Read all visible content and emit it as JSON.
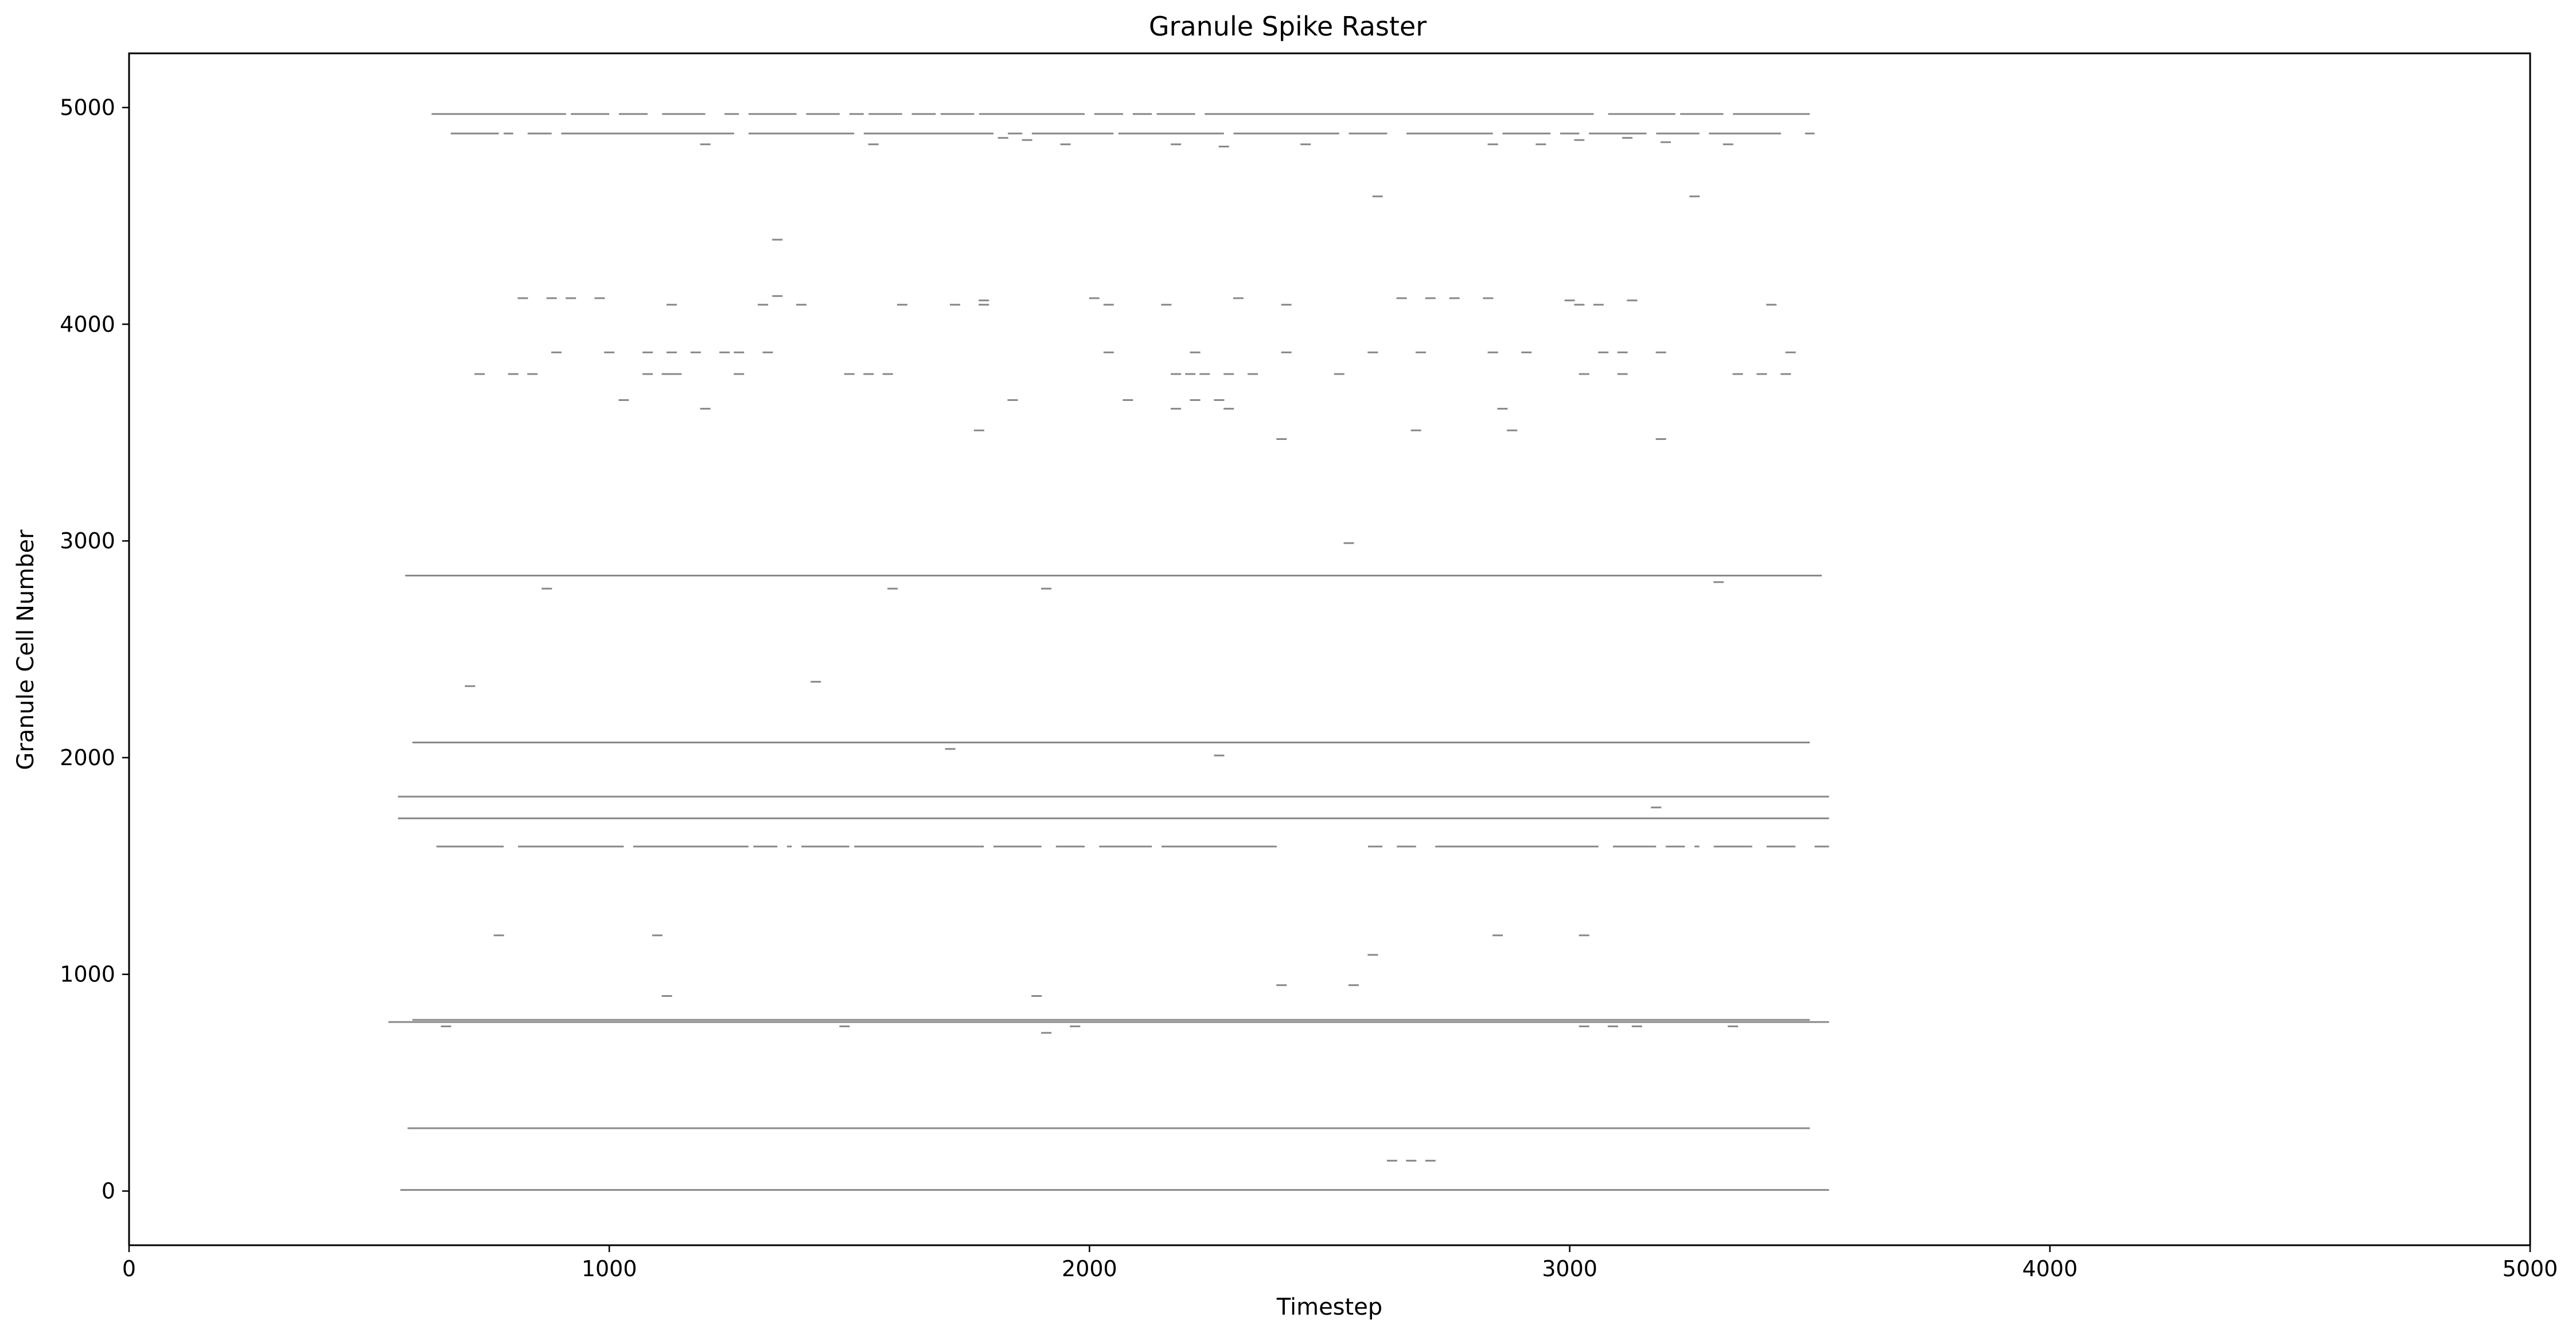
{
  "chart_data": {
    "type": "scatter",
    "title": "Granule Spike Raster",
    "xlabel": "Timestep",
    "ylabel": "Granule Cell Number",
    "xlim": [
      0,
      5000
    ],
    "ylim": [
      -250,
      5250
    ],
    "xticks": [
      0,
      1000,
      2000,
      3000,
      4000,
      5000
    ],
    "yticks": [
      0,
      1000,
      2000,
      3000,
      4000,
      5000
    ],
    "grid": false,
    "marker_color": "#888888",
    "dense_rows": [
      {
        "y": 4970,
        "segments": [
          [
            630,
            910
          ],
          [
            920,
            1000
          ],
          [
            1020,
            1080
          ],
          [
            1110,
            1200
          ],
          [
            1240,
            1270
          ],
          [
            1290,
            1390
          ],
          [
            1410,
            1480
          ],
          [
            1500,
            1530
          ],
          [
            1540,
            1610
          ],
          [
            1630,
            1680
          ],
          [
            1690,
            1760
          ],
          [
            1770,
            1990
          ],
          [
            2010,
            2070
          ],
          [
            2090,
            2130
          ],
          [
            2140,
            2220
          ],
          [
            2240,
            3050
          ],
          [
            3080,
            3220
          ],
          [
            3230,
            3320
          ],
          [
            3340,
            3500
          ]
        ]
      },
      {
        "y": 4880,
        "segments": [
          [
            670,
            770
          ],
          [
            780,
            800
          ],
          [
            830,
            880
          ],
          [
            900,
            1260
          ],
          [
            1290,
            1510
          ],
          [
            1530,
            1800
          ],
          [
            1830,
            1860
          ],
          [
            1880,
            2050
          ],
          [
            2060,
            2280
          ],
          [
            2300,
            2520
          ],
          [
            2540,
            2620
          ],
          [
            2660,
            2840
          ],
          [
            2860,
            2960
          ],
          [
            2980,
            3020
          ],
          [
            3040,
            3160
          ],
          [
            3180,
            3270
          ],
          [
            3290,
            3440
          ],
          [
            3490,
            3510
          ]
        ]
      },
      {
        "y": 2840,
        "segments": [
          [
            575,
            3525
          ]
        ]
      },
      {
        "y": 2070,
        "segments": [
          [
            590,
            3500
          ]
        ]
      },
      {
        "y": 1820,
        "segments": [
          [
            560,
            3540
          ]
        ]
      },
      {
        "y": 1720,
        "segments": [
          [
            560,
            3540
          ]
        ]
      },
      {
        "y": 1590,
        "segments": [
          [
            640,
            780
          ],
          [
            810,
            1030
          ],
          [
            1050,
            1290
          ],
          [
            1300,
            1350
          ],
          [
            1370,
            1380
          ],
          [
            1400,
            1500
          ],
          [
            1510,
            1780
          ],
          [
            1800,
            1900
          ],
          [
            1930,
            1990
          ],
          [
            2020,
            2130
          ],
          [
            2150,
            2390
          ],
          [
            2580,
            2610
          ],
          [
            2640,
            2680
          ],
          [
            2720,
            3060
          ],
          [
            3090,
            3180
          ],
          [
            3200,
            3240
          ],
          [
            3260,
            3270
          ],
          [
            3300,
            3380
          ],
          [
            3410,
            3470
          ],
          [
            3510,
            3540
          ]
        ]
      },
      {
        "y": 790,
        "segments": [
          [
            590,
            3500
          ]
        ]
      },
      {
        "y": 780,
        "segments": [
          [
            540,
            3540
          ]
        ]
      },
      {
        "y": 290,
        "segments": [
          [
            580,
            3500
          ]
        ]
      },
      {
        "y": 5,
        "segments": [
          [
            565,
            3540
          ]
        ]
      }
    ],
    "sparse_spikes": [
      [
        1200,
        4830
      ],
      [
        1550,
        4830
      ],
      [
        1820,
        4860
      ],
      [
        1870,
        4850
      ],
      [
        1950,
        4830
      ],
      [
        2180,
        4830
      ],
      [
        2280,
        4820
      ],
      [
        2450,
        4830
      ],
      [
        2840,
        4830
      ],
      [
        2940,
        4830
      ],
      [
        3020,
        4850
      ],
      [
        3120,
        4860
      ],
      [
        3200,
        4840
      ],
      [
        3330,
        4830
      ],
      [
        2600,
        4590
      ],
      [
        3260,
        4590
      ],
      [
        1350,
        4390
      ],
      [
        820,
        4120
      ],
      [
        880,
        4120
      ],
      [
        920,
        4120
      ],
      [
        980,
        4120
      ],
      [
        1130,
        4090
      ],
      [
        1320,
        4090
      ],
      [
        1350,
        4130
      ],
      [
        1400,
        4090
      ],
      [
        1610,
        4090
      ],
      [
        1720,
        4090
      ],
      [
        1780,
        4090
      ],
      [
        1780,
        4110
      ],
      [
        2010,
        4120
      ],
      [
        2040,
        4090
      ],
      [
        2160,
        4090
      ],
      [
        2310,
        4120
      ],
      [
        2410,
        4090
      ],
      [
        2650,
        4120
      ],
      [
        2710,
        4120
      ],
      [
        2760,
        4120
      ],
      [
        2830,
        4120
      ],
      [
        3000,
        4110
      ],
      [
        3020,
        4090
      ],
      [
        3060,
        4090
      ],
      [
        3130,
        4110
      ],
      [
        3420,
        4090
      ],
      [
        890,
        3870
      ],
      [
        1000,
        3870
      ],
      [
        1080,
        3870
      ],
      [
        1130,
        3870
      ],
      [
        1180,
        3870
      ],
      [
        1240,
        3870
      ],
      [
        1270,
        3870
      ],
      [
        1330,
        3870
      ],
      [
        2040,
        3870
      ],
      [
        2220,
        3870
      ],
      [
        2410,
        3870
      ],
      [
        2590,
        3870
      ],
      [
        2690,
        3870
      ],
      [
        2840,
        3870
      ],
      [
        2910,
        3870
      ],
      [
        3070,
        3870
      ],
      [
        3110,
        3870
      ],
      [
        3190,
        3870
      ],
      [
        3460,
        3870
      ],
      [
        730,
        3770
      ],
      [
        800,
        3770
      ],
      [
        840,
        3770
      ],
      [
        1080,
        3770
      ],
      [
        1120,
        3770
      ],
      [
        1140,
        3770
      ],
      [
        1270,
        3770
      ],
      [
        1500,
        3770
      ],
      [
        1540,
        3770
      ],
      [
        1580,
        3770
      ],
      [
        2180,
        3770
      ],
      [
        2210,
        3770
      ],
      [
        2240,
        3770
      ],
      [
        2290,
        3770
      ],
      [
        2340,
        3770
      ],
      [
        2520,
        3770
      ],
      [
        3030,
        3770
      ],
      [
        3110,
        3770
      ],
      [
        3350,
        3770
      ],
      [
        3400,
        3770
      ],
      [
        3450,
        3770
      ],
      [
        1030,
        3650
      ],
      [
        1840,
        3650
      ],
      [
        2080,
        3650
      ],
      [
        2220,
        3650
      ],
      [
        2270,
        3650
      ],
      [
        1200,
        3610
      ],
      [
        2180,
        3610
      ],
      [
        2290,
        3610
      ],
      [
        2860,
        3610
      ],
      [
        1770,
        3510
      ],
      [
        2680,
        3510
      ],
      [
        2880,
        3510
      ],
      [
        2400,
        3470
      ],
      [
        3190,
        3470
      ],
      [
        2540,
        2990
      ],
      [
        3310,
        2810
      ],
      [
        870,
        2780
      ],
      [
        1590,
        2780
      ],
      [
        1910,
        2780
      ],
      [
        710,
        2330
      ],
      [
        1430,
        2350
      ],
      [
        1710,
        2040
      ],
      [
        2270,
        2010
      ],
      [
        3180,
        1770
      ],
      [
        770,
        1180
      ],
      [
        1100,
        1180
      ],
      [
        2850,
        1180
      ],
      [
        3030,
        1180
      ],
      [
        2590,
        1090
      ],
      [
        2400,
        950
      ],
      [
        2550,
        950
      ],
      [
        1120,
        900
      ],
      [
        1890,
        900
      ],
      [
        1910,
        730
      ],
      [
        660,
        760
      ],
      [
        1490,
        760
      ],
      [
        1970,
        760
      ],
      [
        3030,
        760
      ],
      [
        3090,
        760
      ],
      [
        3140,
        760
      ],
      [
        3340,
        760
      ],
      [
        2630,
        140
      ],
      [
        2670,
        140
      ],
      [
        2710,
        140
      ]
    ]
  }
}
